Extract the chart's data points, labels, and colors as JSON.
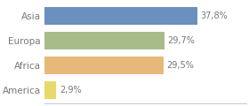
{
  "categories": [
    "Asia",
    "Europa",
    "Africa",
    "America"
  ],
  "values": [
    37.8,
    29.7,
    29.5,
    2.9
  ],
  "labels": [
    "37,8%",
    "29,7%",
    "29,5%",
    "2,9%"
  ],
  "bar_colors": [
    "#6b8fbf",
    "#a8bc8a",
    "#e8b87a",
    "#e8d96a"
  ],
  "background_color": "#ffffff",
  "xlim": [
    0,
    50
  ],
  "bar_height": 0.72,
  "label_fontsize": 7.0,
  "tick_fontsize": 7.5,
  "tick_color": "#777777",
  "label_color": "#777777"
}
